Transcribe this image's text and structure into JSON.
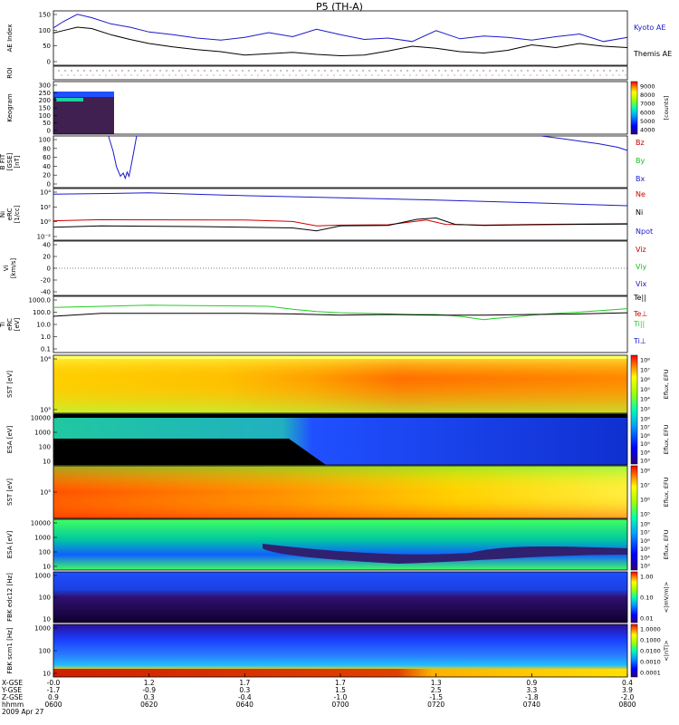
{
  "figure": {
    "title": "P5 (TH-A)",
    "date": "2009 Apr 27"
  },
  "colors": {
    "kyoto": "#1a1acc",
    "themis": "#000000",
    "bz": "#cc0000",
    "by": "#22bb22",
    "bx": "#1a1acc",
    "ne": "#cc0000",
    "ni": "#000000",
    "npot": "#1a1acc",
    "green": "#22cc22"
  },
  "chart_data": [
    {
      "id": "ae",
      "type": "line",
      "ylabel": "AE Index",
      "yticks": [
        "150",
        "100",
        "50",
        "0"
      ],
      "ylim": [
        0,
        160
      ],
      "series": [
        {
          "name": "Kyoto AE",
          "color": "#1a1acc",
          "t": [
            0,
            2,
            5,
            8,
            12,
            16,
            20,
            25,
            30,
            35,
            40,
            45,
            50,
            55,
            60,
            65,
            70,
            75,
            80,
            85,
            90,
            95,
            100,
            105,
            110,
            115,
            120
          ],
          "v": [
            110,
            128,
            150,
            140,
            122,
            112,
            98,
            90,
            80,
            74,
            82,
            96,
            84,
            106,
            90,
            76,
            80,
            70,
            102,
            78,
            86,
            82,
            74,
            84,
            92,
            70,
            82
          ]
        },
        {
          "name": "Themis AE",
          "color": "#000000",
          "t": [
            0,
            2,
            5,
            8,
            12,
            16,
            20,
            25,
            30,
            35,
            40,
            45,
            50,
            55,
            60,
            65,
            70,
            75,
            80,
            85,
            90,
            95,
            100,
            105,
            110,
            115,
            120
          ],
          "v": [
            95,
            102,
            112,
            108,
            90,
            76,
            64,
            54,
            46,
            40,
            30,
            34,
            38,
            32,
            28,
            30,
            42,
            56,
            50,
            40,
            36,
            44,
            60,
            52,
            64,
            56,
            52
          ]
        }
      ]
    },
    {
      "id": "roi",
      "type": "scatter",
      "ylabel": "ROI",
      "yticks": []
    },
    {
      "id": "keogram",
      "type": "heatmap",
      "ylabel": "Keogram",
      "yticks": [
        "300",
        "250",
        "200",
        "150",
        "100",
        "50",
        "0"
      ],
      "colorbar": {
        "ticks": [
          "9000",
          "8000",
          "7000",
          "6000",
          "5000",
          "4000"
        ],
        "label": "[counts]"
      }
    },
    {
      "id": "bfield",
      "type": "line",
      "ylabel": "B FIT [GSE] [nT]",
      "ylabel_lines": [
        "B FIT",
        "[GSE]",
        "[nT]"
      ],
      "yticks": [
        "100",
        "80",
        "60",
        "40",
        "20",
        "0"
      ],
      "ylim": [
        0,
        100
      ],
      "labels": [
        "Bz",
        "By",
        "Bx"
      ],
      "series": [
        {
          "name": "Bx",
          "color": "#1a1acc",
          "t": [
            11.5,
            12.5,
            13.2,
            14,
            14.6,
            15,
            15.4,
            15.8,
            16.2,
            16.8,
            17.4,
            18
          ],
          "v": [
            100,
            70,
            40,
            22,
            28,
            18,
            30,
            22,
            40,
            70,
            100,
            100
          ]
        },
        {
          "name": "Bx",
          "color": "#1a1acc",
          "t": [
            102,
            106,
            110,
            114,
            118,
            120
          ],
          "v": [
            100,
            95,
            90,
            85,
            78,
            72
          ]
        }
      ]
    },
    {
      "id": "density",
      "type": "line",
      "ylabel": "Ni [1/cc]",
      "ylabel_lines": [
        "Ni",
        "eRC",
        "[1/cc]"
      ],
      "yticks": [
        "10⁴",
        "10²",
        "10⁰",
        "10⁻²"
      ],
      "log": true,
      "labels": [
        "Ne",
        "Ni",
        "Npot"
      ],
      "series": [
        {
          "name": "Npot",
          "color": "#1a1acc",
          "t": [
            0,
            20,
            40,
            60,
            80,
            100,
            120
          ],
          "v": [
            3.8,
            4.0,
            3.6,
            3.3,
            3.0,
            2.6,
            2.2
          ]
        },
        {
          "name": "Ne",
          "color": "#cc0000",
          "t": [
            0,
            10,
            40,
            50,
            55,
            60,
            70,
            78,
            82,
            90,
            100,
            120
          ],
          "v": [
            0.1,
            0.25,
            0.2,
            0.0,
            -0.6,
            -0.5,
            -0.45,
            0.2,
            -0.4,
            -0.5,
            -0.4,
            -0.3
          ]
        },
        {
          "name": "Ni",
          "color": "#000000",
          "t": [
            0,
            10,
            30,
            50,
            55,
            60,
            70,
            76,
            80,
            84,
            90,
            100,
            120
          ],
          "v": [
            -0.8,
            -0.6,
            -0.7,
            -0.9,
            -1.3,
            -0.6,
            -0.55,
            0.3,
            0.5,
            -0.4,
            -0.55,
            -0.45,
            -0.35
          ]
        }
      ]
    },
    {
      "id": "velocity",
      "type": "line",
      "ylabel": "Vi [km/s]",
      "ylabel_lines": [
        "Vi",
        "[km/s]"
      ],
      "yticks": [
        "40",
        "20",
        "0",
        "-20",
        "-40"
      ],
      "ylim": [
        -50,
        50
      ],
      "labels": [
        "Viz",
        "Viy",
        "Vix"
      ]
    },
    {
      "id": "temperature",
      "type": "line",
      "ylabel": "Ti eRC [eV]",
      "ylabel_lines": [
        "Ti",
        "eRC",
        "[eV]"
      ],
      "yticks": [
        "1000.0",
        "100.0",
        "10.0",
        "1.0",
        "0.1"
      ],
      "log": true,
      "labels": [
        "Te||",
        "Te⊥",
        "Ti||",
        "Ti⊥"
      ],
      "series": [
        {
          "name": "Ti||",
          "color": "#22cc22",
          "t": [
            0,
            10,
            20,
            30,
            40,
            45,
            50,
            55,
            60,
            65,
            70,
            75,
            80,
            85,
            90,
            92,
            95,
            100,
            105,
            110,
            115,
            120
          ],
          "v": [
            2.65,
            2.75,
            2.85,
            2.8,
            2.78,
            2.75,
            2.5,
            2.3,
            2.2,
            2.15,
            2.1,
            2.05,
            2.05,
            1.9,
            1.6,
            1.7,
            1.8,
            2.0,
            2.15,
            2.25,
            2.4,
            2.55
          ]
        },
        {
          "name": "Te||",
          "color": "#000000",
          "t": [
            0,
            10,
            20,
            30,
            40,
            50,
            60,
            70,
            80,
            90,
            100,
            110,
            120
          ],
          "v": [
            1.9,
            2.15,
            2.15,
            2.15,
            2.15,
            2.1,
            2.0,
            2.05,
            2.0,
            2.0,
            2.05,
            2.1,
            2.2
          ]
        }
      ]
    },
    {
      "id": "sst_e",
      "type": "heatmap",
      "ylabel": "SST [eV]",
      "yticks": [
        "10⁶",
        "10⁵"
      ],
      "colorbar": {
        "ticks": [
          "10⁸",
          "10⁷",
          "10⁶",
          "10⁵",
          "10⁴",
          "10³"
        ],
        "label": "Eflux, EFU"
      }
    },
    {
      "id": "esa_e",
      "type": "heatmap",
      "ylabel": "ESA [eV]",
      "yticks": [
        "10000",
        "1000",
        "100",
        "10"
      ],
      "colorbar": {
        "ticks": [
          "10⁸",
          "10⁷",
          "10⁶",
          "10⁵",
          "10⁴",
          "10³"
        ],
        "label": "Eflux, EFU"
      }
    },
    {
      "id": "sst_i",
      "type": "heatmap",
      "ylabel": "SST [eV]",
      "yticks": [
        "10⁵"
      ],
      "colorbar": {
        "ticks": [
          "10⁸",
          "10⁷",
          "10⁶",
          "10⁵"
        ],
        "label": "Eflux, EFU"
      }
    },
    {
      "id": "esa_i",
      "type": "heatmap",
      "ylabel": "ESA [eV]",
      "yticks": [
        "10000",
        "1000",
        "100",
        "10"
      ],
      "colorbar": {
        "ticks": [
          "10⁸",
          "10⁷",
          "10⁶",
          "10⁵",
          "10⁴",
          "10³"
        ],
        "label": "Eflux, EFU"
      }
    },
    {
      "id": "fbk_e",
      "type": "heatmap",
      "ylabel": "FBK edc12 [Hz]",
      "yticks": [
        "1000",
        "100",
        "10"
      ],
      "colorbar": {
        "ticks": [
          "1.00",
          "0.10",
          "0.01"
        ],
        "label": "<|mV/m|>"
      }
    },
    {
      "id": "fbk_b",
      "type": "heatmap",
      "ylabel": "FBK scm1 [Hz]",
      "yticks": [
        "1000",
        "100",
        "10"
      ],
      "colorbar": {
        "ticks": [
          "1.0000",
          "0.1000",
          "0.0100",
          "0.0010",
          "0.0001"
        ],
        "label": "<|nT|>"
      }
    }
  ],
  "axis": {
    "row_labels": [
      "X-GSE",
      "Y-GSE",
      "Z-GSE",
      "hhmm",
      "2009 Apr 27"
    ],
    "ticks": [
      {
        "x": "-0.0",
        "y": "-1.7",
        "z": "0.9",
        "t": "0600"
      },
      {
        "x": "1.2",
        "y": "-0.9",
        "z": "0.3",
        "t": "0620"
      },
      {
        "x": "1.7",
        "y": "0.3",
        "z": "-0.4",
        "t": "0640"
      },
      {
        "x": "1.7",
        "y": "1.5",
        "z": "-1.0",
        "t": "0700"
      },
      {
        "x": "1.3",
        "y": "2.5",
        "z": "-1.5",
        "t": "0720"
      },
      {
        "x": "0.9",
        "y": "3.3",
        "z": "-1.8",
        "t": "0740"
      },
      {
        "x": "0.4",
        "y": "3.9",
        "z": "-2.0",
        "t": "0800"
      }
    ]
  }
}
